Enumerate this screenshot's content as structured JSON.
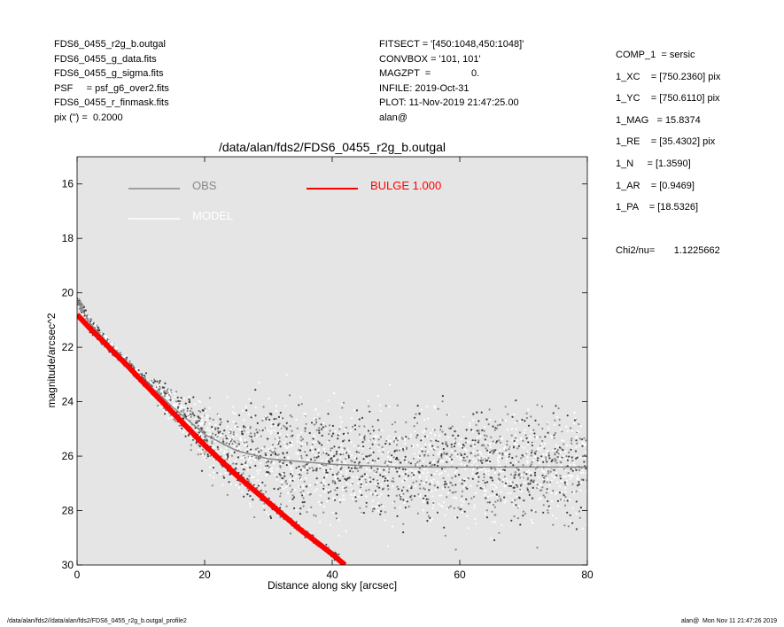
{
  "header": {
    "files": [
      "FDS6_0455_r2g_b.outgal",
      "FDS6_0455_g_data.fits",
      "FDS6_0455_g_sigma.fits",
      "PSF     = psf_g6_over2.fits",
      "FDS6_0455_r_finmask.fits",
      "pix (\") =  0.2000"
    ],
    "settings": [
      "FITSECT = '[450:1048,450:1048]'",
      "CONVBOX = '101, 101'",
      "MAGZPT  =               0.",
      "INFILE: 2019-Oct-31",
      "PLOT: 11-Nov-2019 21:47:25.00",
      "alan@"
    ]
  },
  "params": [
    "COMP_1  = sersic",
    "1_XC    = [750.2360] pix",
    "1_YC    = [750.6110] pix",
    "1_MAG   = 15.8374",
    "1_RE    = [35.4302] pix",
    "1_N     = [1.3590]",
    "1_AR    = [0.9469]",
    "1_PA    = [18.5326]",
    "",
    "Chi2/nu=       1.1225662"
  ],
  "footer": {
    "left": "/data/alan/fds2//data/alan/fds2/FDS6_0455_r2g_b.outgal_profile2",
    "right": "alan@  Mon Nov 11 21:47:26 2019"
  },
  "colors": {
    "plot_bg": "#e5e5e5",
    "obs": "#888888",
    "model": "#ffffff",
    "bulge": "#ff0000",
    "dark_points": "#404040"
  },
  "chart_data": {
    "type": "scatter",
    "title": "/data/alan/fds2/FDS6_0455_r2g_b.outgal",
    "xlabel": "Distance along sky [arcsec]",
    "ylabel": "magnitude/arcsec^2",
    "xlim": [
      0,
      80
    ],
    "ylim": [
      30,
      15
    ],
    "y_inverted": true,
    "xticks": [
      0,
      20,
      40,
      60,
      80
    ],
    "yticks": [
      16,
      18,
      20,
      22,
      24,
      26,
      28,
      30
    ],
    "legend": [
      {
        "label": "OBS",
        "color": "#888888"
      },
      {
        "label": "MODEL",
        "color": "#ffffff"
      },
      {
        "label": "BULGE  1.000",
        "color": "#ff0000"
      }
    ],
    "series": [
      {
        "name": "BULGE  1.000",
        "x": [
          0,
          2,
          5,
          8,
          10,
          15,
          20,
          25,
          30,
          35,
          40,
          42
        ],
        "y": [
          20.8,
          21.3,
          22.0,
          22.7,
          23.2,
          24.4,
          25.6,
          26.7,
          27.7,
          28.7,
          29.6,
          30.0
        ]
      },
      {
        "name": "OBS",
        "x": [
          0,
          2,
          5,
          8,
          10,
          15,
          20,
          25,
          30,
          40,
          50,
          60,
          70,
          80
        ],
        "y": [
          20.3,
          21.1,
          21.9,
          22.6,
          23.1,
          24.2,
          25.2,
          25.8,
          26.1,
          26.3,
          26.4,
          26.4,
          26.4,
          26.4
        ]
      },
      {
        "name": "MODEL",
        "x": [
          0,
          2,
          5,
          8,
          10,
          15,
          20,
          25,
          30,
          35,
          40,
          42
        ],
        "y": [
          20.8,
          21.3,
          22.0,
          22.7,
          23.2,
          24.4,
          25.6,
          26.7,
          27.7,
          28.7,
          29.6,
          30.0
        ]
      }
    ]
  }
}
